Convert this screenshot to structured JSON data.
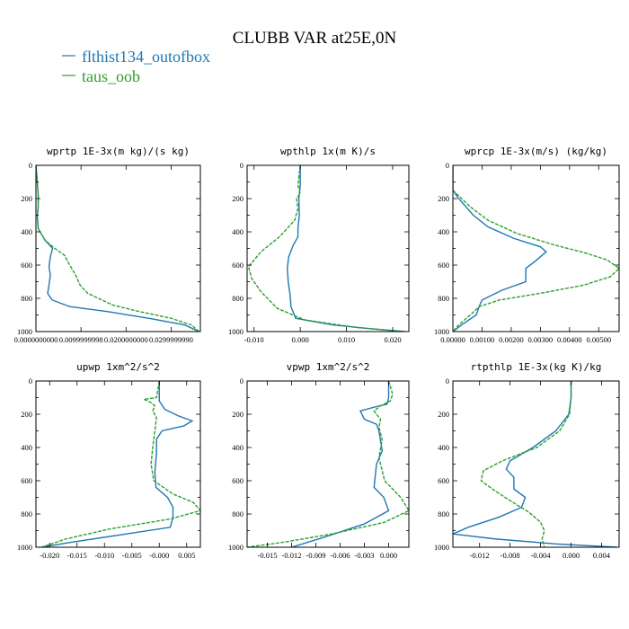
{
  "title": "CLUBB VAR at25E,0N",
  "legend": [
    {
      "label": "flthist134_outofbox",
      "color": "#1f77b4"
    },
    {
      "label": "taus_oob",
      "color": "#2ca02c"
    }
  ],
  "chart_data": [
    {
      "type": "line",
      "title": "wprtp  1E-3x(m kg)/(s kg)",
      "xlim": [
        0.0,
        0.0365
      ],
      "ylim": [
        1000,
        0
      ],
      "xticks": [
        0.0,
        0.01,
        0.02,
        0.03
      ],
      "xtick_labels": [
        "0.0000000000",
        "0.0099999998",
        "0.0200000000",
        "0.0299999990"
      ],
      "yticks": [
        0,
        200,
        400,
        600,
        800,
        1000
      ],
      "series": [
        {
          "name": "flthist134_outofbox",
          "color": "#1f77b4",
          "dash": false,
          "x": [
            0.0,
            0.0003,
            0.0005,
            0.0005,
            0.0003,
            0.0005,
            0.002,
            0.0037,
            0.0032,
            0.0029,
            0.0032,
            0.0029,
            0.0026,
            0.0036,
            0.0075,
            0.016,
            0.025,
            0.033,
            0.0362
          ],
          "y": [
            0,
            100,
            180,
            250,
            300,
            380,
            450,
            500,
            550,
            610,
            660,
            720,
            770,
            810,
            850,
            880,
            920,
            960,
            1000
          ]
        },
        {
          "name": "taus_oob",
          "color": "#2ca02c",
          "dash": true,
          "x": [
            0.0,
            0.0003,
            0.0005,
            0.0005,
            0.0003,
            0.0005,
            0.002,
            0.0042,
            0.0063,
            0.0075,
            0.0088,
            0.0098,
            0.0115,
            0.017,
            0.023,
            0.03,
            0.0345,
            0.0362
          ],
          "y": [
            0,
            100,
            180,
            250,
            300,
            380,
            450,
            500,
            540,
            600,
            660,
            720,
            770,
            840,
            880,
            920,
            960,
            1000
          ]
        }
      ]
    },
    {
      "type": "line",
      "title": "wpthlp  1x(m K)/s",
      "xlim": [
        -0.0115,
        0.0235
      ],
      "ylim": [
        1000,
        0
      ],
      "xticks": [
        -0.01,
        0.0,
        0.01,
        0.02
      ],
      "xtick_labels": [
        "-0.010",
        "0.000",
        "0.010",
        "0.020"
      ],
      "yticks": [
        0,
        200,
        400,
        600,
        800,
        1000
      ],
      "series": [
        {
          "name": "flthist134_outofbox",
          "color": "#1f77b4",
          "dash": false,
          "x": [
            0.0,
            0.0,
            -0.0003,
            -0.0002,
            -0.0005,
            -0.0005,
            -0.0015,
            -0.0025,
            -0.0028,
            -0.0026,
            -0.0022,
            -0.002,
            -0.001,
            0.007,
            0.016,
            0.0225
          ],
          "y": [
            0,
            120,
            200,
            300,
            380,
            430,
            480,
            550,
            620,
            700,
            780,
            850,
            920,
            960,
            985,
            1000
          ]
        },
        {
          "name": "taus_oob",
          "color": "#2ca02c",
          "dash": true,
          "x": [
            0.0,
            -0.0005,
            0.0,
            -0.0008,
            -0.0005,
            -0.0012,
            -0.0045,
            -0.0085,
            -0.0112,
            -0.0105,
            -0.0085,
            -0.005,
            0.001,
            0.012,
            0.0225
          ],
          "y": [
            0,
            120,
            170,
            200,
            260,
            330,
            430,
            520,
            610,
            680,
            760,
            860,
            930,
            975,
            1000
          ]
        }
      ]
    },
    {
      "type": "line",
      "title": "wprcp  1E-3x(m/s) (kg/kg)",
      "xlim": [
        0.0,
        0.0057
      ],
      "ylim": [
        1000,
        0
      ],
      "xticks": [
        0.0,
        0.001,
        0.002,
        0.003,
        0.004,
        0.005
      ],
      "xtick_labels": [
        "0.00000",
        "0.00100",
        "0.00200",
        "0.00300",
        "0.00400",
        "0.00500"
      ],
      "yticks": [
        0,
        200,
        400,
        600,
        800,
        1000
      ],
      "series": [
        {
          "name": "flthist134_outofbox",
          "color": "#1f77b4",
          "dash": false,
          "x": [
            0.0,
            0.0,
            0.0002,
            0.0007,
            0.0012,
            0.0021,
            0.003,
            0.0032,
            0.0028,
            0.0025,
            0.0025,
            0.0017,
            0.001,
            0.0009,
            0.0008,
            0.0003,
            0.0
          ],
          "y": [
            0,
            150,
            200,
            300,
            370,
            440,
            490,
            520,
            580,
            620,
            700,
            750,
            810,
            850,
            900,
            960,
            1000
          ]
        },
        {
          "name": "taus_oob",
          "color": "#2ca02c",
          "dash": true,
          "x": [
            0.0,
            0.0,
            0.0003,
            0.0006,
            0.0012,
            0.0022,
            0.0035,
            0.0046,
            0.0053,
            0.0057,
            0.0054,
            0.0045,
            0.003,
            0.0016,
            0.0009,
            0.0006,
            0.0002,
            0.0
          ],
          "y": [
            0,
            150,
            200,
            250,
            330,
            410,
            480,
            530,
            570,
            620,
            670,
            720,
            770,
            810,
            850,
            900,
            960,
            1000
          ]
        }
      ]
    },
    {
      "type": "line",
      "title": "upwp  1xm^2/s^2",
      "xlim": [
        -0.0225,
        0.0075
      ],
      "ylim": [
        1000,
        0
      ],
      "xticks": [
        -0.02,
        -0.015,
        -0.01,
        -0.005,
        0.0,
        0.005
      ],
      "xtick_labels": [
        "-0.020",
        "-0.015",
        "-0.010",
        "-0.005",
        "-0.000",
        "0.005"
      ],
      "yticks": [
        0,
        200,
        400,
        600,
        800,
        1000
      ],
      "series": [
        {
          "name": "flthist134_outofbox",
          "color": "#1f77b4",
          "dash": false,
          "x": [
            0.0,
            0.0,
            0.001,
            0.0035,
            0.006,
            0.0045,
            0.0005,
            -0.0005,
            -0.0005,
            -0.0008,
            -0.0006,
            0.0015,
            0.0025,
            0.0025,
            0.002,
            -0.008,
            -0.016,
            -0.0215
          ],
          "y": [
            0,
            120,
            170,
            210,
            240,
            270,
            300,
            350,
            430,
            550,
            640,
            700,
            760,
            820,
            880,
            930,
            970,
            1000
          ]
        },
        {
          "name": "taus_oob",
          "color": "#2ca02c",
          "dash": true,
          "x": [
            0.0,
            -0.0005,
            -0.0028,
            -0.0015,
            -0.0008,
            -0.0012,
            -0.0005,
            -0.0008,
            -0.0012,
            -0.0015,
            -0.001,
            0.0025,
            0.0062,
            0.0075,
            0.002,
            -0.009,
            -0.017,
            -0.0215
          ],
          "y": [
            0,
            100,
            110,
            130,
            150,
            180,
            220,
            300,
            400,
            500,
            600,
            680,
            730,
            780,
            830,
            890,
            950,
            1000
          ]
        }
      ]
    },
    {
      "type": "line",
      "title": "vpwp  1xm^2/s^2",
      "xlim": [
        -0.0175,
        0.0025
      ],
      "ylim": [
        1000,
        0
      ],
      "xticks": [
        -0.015,
        -0.012,
        -0.009,
        -0.006,
        -0.003,
        0.0
      ],
      "xtick_labels": [
        "-0.015",
        "-0.012",
        "-0.009",
        "-0.006",
        "-0.003",
        "0.000"
      ],
      "yticks": [
        0,
        200,
        400,
        600,
        800,
        1000
      ],
      "series": [
        {
          "name": "flthist134_outofbox",
          "color": "#1f77b4",
          "dash": false,
          "x": [
            0.0,
            0.0,
            -0.0002,
            -0.0012,
            -0.0035,
            -0.003,
            -0.0015,
            -0.0012,
            -0.0008,
            -0.0015,
            -0.0018,
            -0.0006,
            0.0,
            -0.003,
            -0.008,
            -0.012
          ],
          "y": [
            0,
            100,
            140,
            150,
            180,
            230,
            260,
            300,
            420,
            500,
            640,
            700,
            780,
            860,
            940,
            1000
          ]
        },
        {
          "name": "taus_oob",
          "color": "#2ca02c",
          "dash": true,
          "x": [
            0.0,
            0.0005,
            0.0002,
            -0.001,
            -0.0018,
            -0.0015,
            -0.001,
            -0.0012,
            -0.0008,
            -0.0012,
            -0.0005,
            0.0015,
            0.0025,
            -0.0005,
            -0.007,
            -0.013,
            -0.0175
          ],
          "y": [
            0,
            80,
            120,
            150,
            180,
            200,
            230,
            280,
            350,
            460,
            600,
            700,
            780,
            850,
            920,
            970,
            1000
          ]
        }
      ]
    },
    {
      "type": "line",
      "title": "rtpthlp  1E-3x(kg K)/kg",
      "xlim": [
        -0.0155,
        0.0063
      ],
      "ylim": [
        1000,
        0
      ],
      "xticks": [
        -0.012,
        -0.008,
        -0.004,
        0.0,
        0.004
      ],
      "xtick_labels": [
        "-0.012",
        "-0.008",
        "-0.004",
        "0.000",
        "0.004"
      ],
      "yticks": [
        0,
        200,
        400,
        600,
        800,
        1000
      ],
      "series": [
        {
          "name": "flthist134_outofbox",
          "color": "#1f77b4",
          "dash": false,
          "x": [
            0.0,
            0.0,
            -0.0003,
            -0.002,
            -0.005,
            -0.008,
            -0.0085,
            -0.0075,
            -0.0075,
            -0.006,
            -0.0065,
            -0.0095,
            -0.0135,
            -0.0155,
            -0.01,
            -0.002,
            0.006
          ],
          "y": [
            0,
            100,
            200,
            300,
            400,
            480,
            530,
            580,
            650,
            700,
            760,
            820,
            880,
            920,
            950,
            980,
            1000
          ]
        },
        {
          "name": "taus_oob",
          "color": "#2ca02c",
          "dash": true,
          "x": [
            0.0,
            0.0,
            -0.0002,
            -0.0015,
            -0.0045,
            -0.009,
            -0.0115,
            -0.0118,
            -0.01,
            -0.008,
            -0.0055,
            -0.004,
            -0.0035,
            -0.0038,
            -0.0035
          ],
          "y": [
            0,
            100,
            200,
            300,
            400,
            480,
            540,
            600,
            660,
            720,
            790,
            850,
            900,
            950,
            1000
          ]
        }
      ]
    }
  ]
}
